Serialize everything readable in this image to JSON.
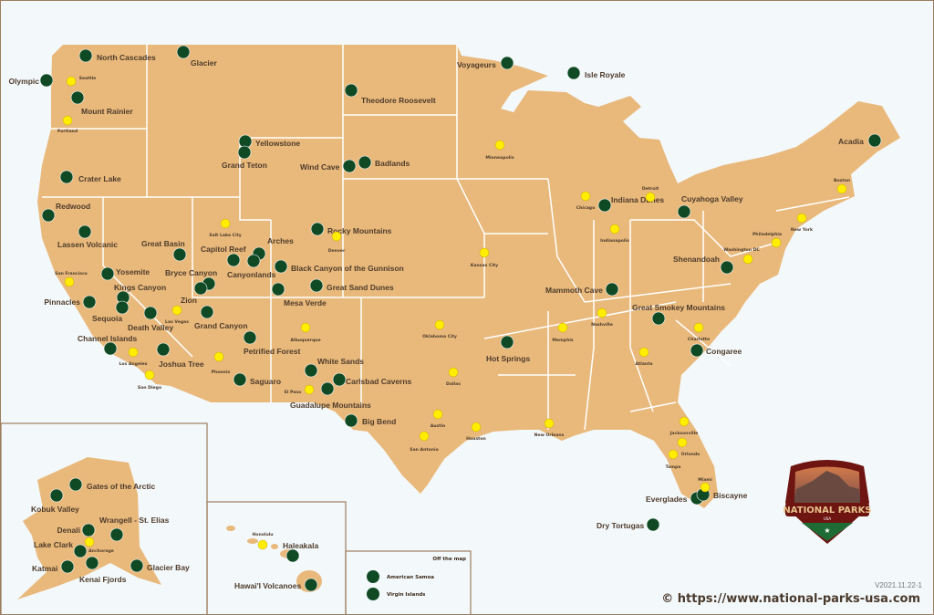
{
  "colors": {
    "land": "#e9b97c",
    "border": "#ffffff",
    "park": "#0f4a25",
    "city": "#ffee00",
    "label": "#4e3b2a",
    "frame": "#9c7c5c",
    "badge": "#6e1512",
    "badge_green": "#1e6b35"
  },
  "parks": [
    "North Cascades",
    "Olympic",
    "Mount Rainier",
    "Crater Lake",
    "Glacier",
    "Yellowstone",
    "Grand Teton",
    "Theodore Roosevelt",
    "Voyageurs",
    "Isle Royale",
    "Wind Cave",
    "Badlands",
    "Redwood",
    "Lassen Volcanic",
    "Great Basin",
    "Capitol Reef",
    "Arches",
    "Canyonlands",
    "Rocky Mountains",
    "Black Canyon of the Gunnison",
    "Great Sand Dunes",
    "Mesa Verde",
    "Yosemite",
    "Bryce Canyon",
    "Zion",
    "Kings Canyon",
    "Pinnacles",
    "Sequoia",
    "Death Valley",
    "Grand Canyon",
    "Channel Islands",
    "Joshua Tree",
    "Petrified Forest",
    "Saguaro",
    "White Sands",
    "Carlsbad Caverns",
    "Guadalupe Mountains",
    "Big Bend",
    "Hot Springs",
    "Mammoth Cave",
    "Great Smokey Mountains",
    "Congaree",
    "Shenandoah",
    "Cuyahoga Valley",
    "Indiana Dunes",
    "Acadia",
    "Everglades",
    "Biscayne",
    "Dry Tortugas",
    "Gates of the Arctic",
    "Kobuk Valley",
    "Denali",
    "Wrangell - St. Elias",
    "Lake Clark",
    "Katmai",
    "Kenai Fjords",
    "Glacier Bay",
    "Haleakala",
    "Hawai'I Volcanoes"
  ],
  "cities": [
    "Seattle",
    "Portland",
    "Minneapolis",
    "Chicago",
    "Detroit",
    "Boston",
    "New York",
    "Indianapolis",
    "Philadelphia",
    "Washington DC",
    "Salt Lake City",
    "Denver",
    "Kansas City",
    "San Francisco",
    "Las Vegas",
    "Oklahoma City",
    "Nashville",
    "Memphis",
    "Charlotte",
    "Albuquerque",
    "Los Angeles",
    "Phoenix",
    "Atlanta",
    "San Diego",
    "El Paso",
    "Dallas",
    "Austin",
    "Houston",
    "San Antonio",
    "New Orleans",
    "Jacksonville",
    "Orlando",
    "Tampa",
    "Miami",
    "Honolulu",
    "Anchorage"
  ],
  "off_map": {
    "title": "Off the map",
    "parks": [
      "American Samoa",
      "Virgin Islands"
    ]
  },
  "logo": {
    "title": "NATIONAL PARKS",
    "subtitle": "USA"
  },
  "version": "V2021.11.22-1",
  "credit": "© https://www.national-parks-usa.com"
}
